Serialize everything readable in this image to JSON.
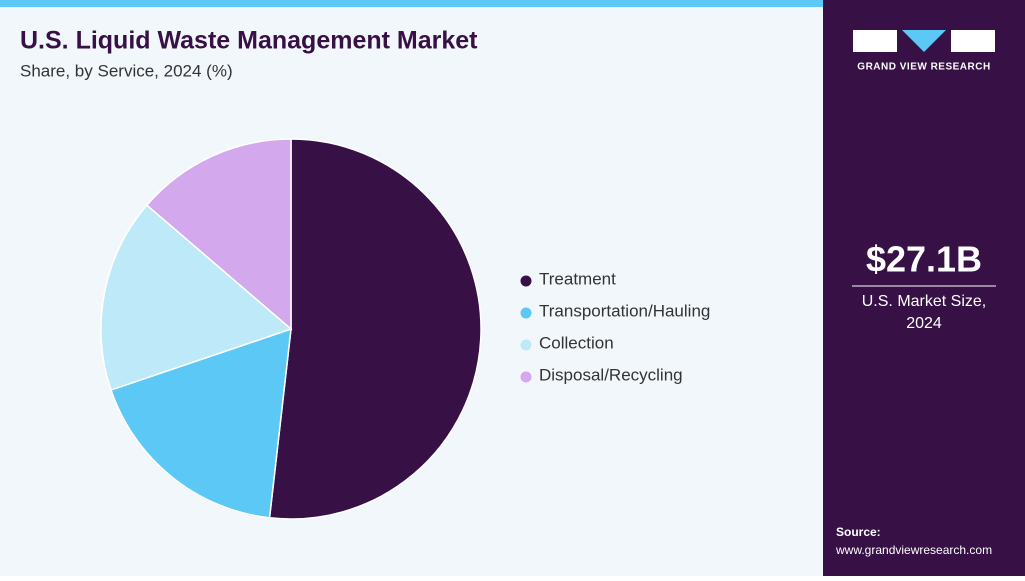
{
  "chart_data": {
    "type": "pie",
    "title": "U.S. Liquid Waste Management Market",
    "subtitle": "Share, by Service, 2024 (%)",
    "categories": [
      "Treatment",
      "Transportation/Hauling",
      "Collection",
      "Disposal/Recycling"
    ],
    "values": [
      51.8,
      18.0,
      16.5,
      13.7
    ],
    "colors": [
      "#371046",
      "#5bc8f5",
      "#bde9f9",
      "#d3a8ec"
    ]
  },
  "side_panel": {
    "brand": "GRAND VIEW RESEARCH",
    "market_size": "$27.1B",
    "market_size_label": [
      "U.S. Market Size,",
      "2024"
    ],
    "source_label": "Source:",
    "source_url": "www.grandviewresearch.com"
  }
}
